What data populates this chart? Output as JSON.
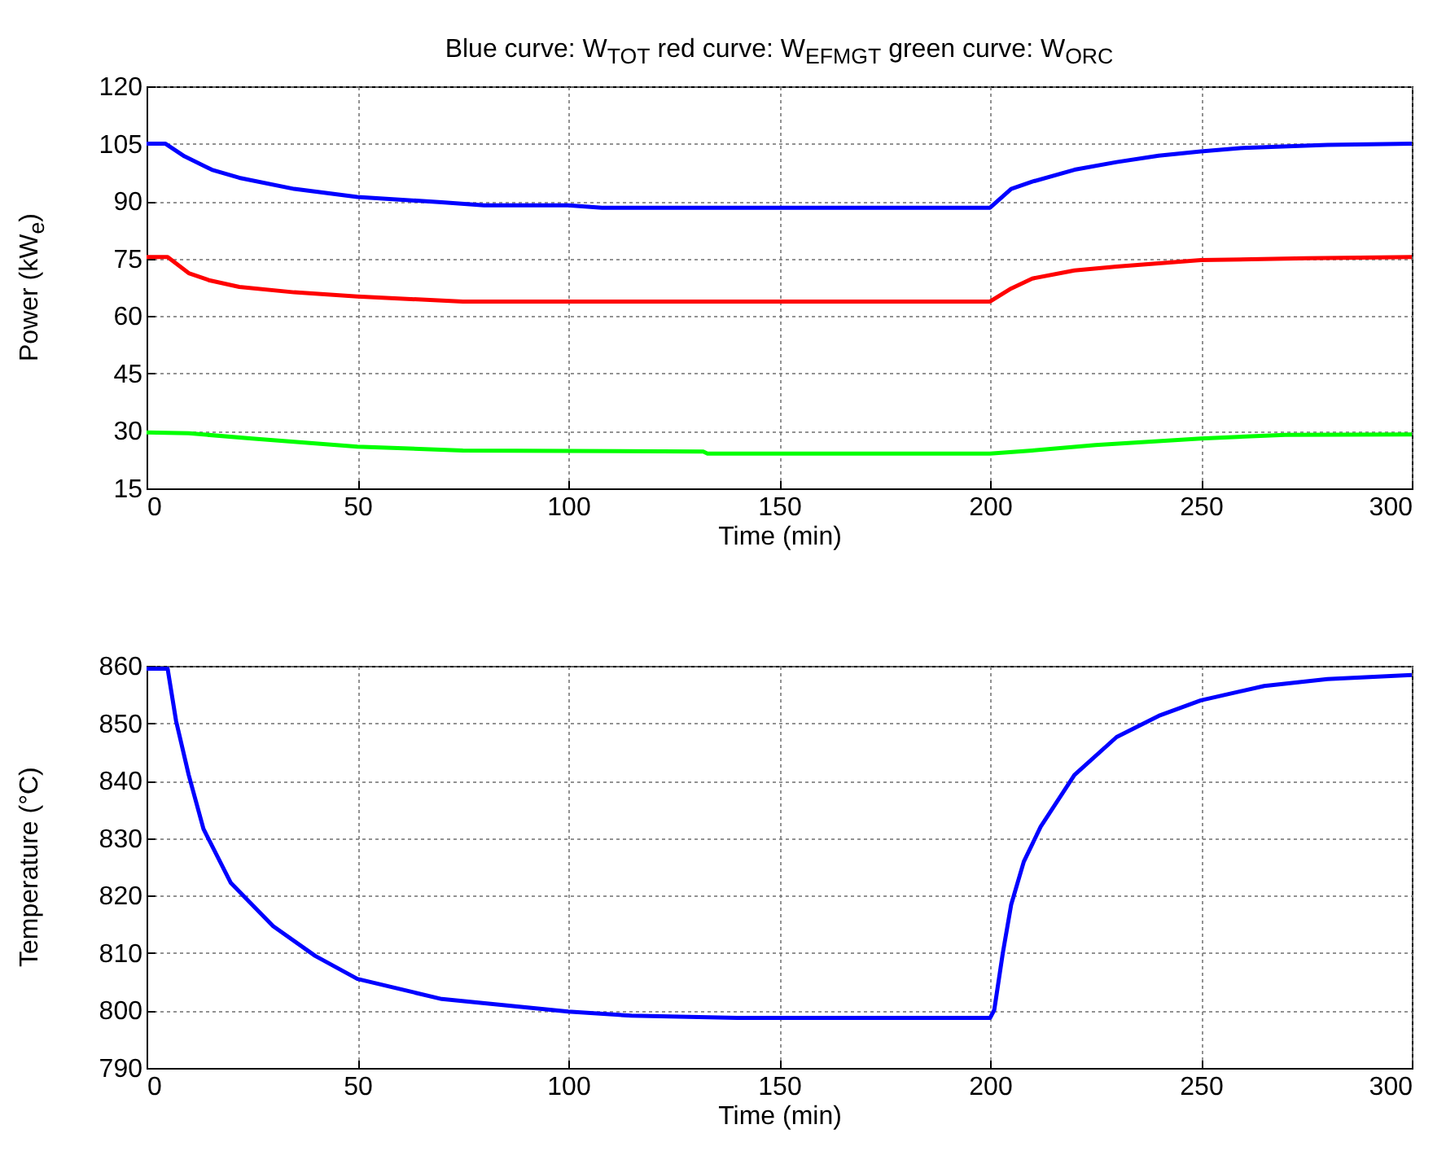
{
  "chart_data": [
    {
      "type": "line",
      "title": "Blue curve: W$_{TOT}$ red curve: W$_{EFMGT}$ green curve: W$_{ORC}$",
      "xlabel": "Time (min)",
      "ylabel": "Power (kW$_{e}$)",
      "xlim": [
        0,
        300
      ],
      "xticks": [
        0,
        50,
        100,
        150,
        200,
        250,
        300
      ],
      "ylim": [
        15,
        120
      ],
      "yticks": [
        15,
        30,
        45,
        60,
        75,
        90,
        105,
        120
      ],
      "grid": true,
      "line_style": "solid",
      "marker": "none",
      "series": [
        {
          "color": "#0000ff",
          "x": [
            0,
            4.5,
            9,
            15.5,
            22,
            35,
            50,
            70,
            80,
            100,
            108,
            150,
            200,
            205,
            210,
            220,
            230,
            240,
            250,
            260,
            280,
            300
          ],
          "values": [
            105,
            105,
            101.7,
            98.2,
            96.1,
            93.2,
            91.1,
            89.7,
            88.9,
            88.9,
            88.3,
            88.3,
            88.3,
            93.2,
            95.1,
            98.2,
            100.2,
            101.9,
            103.0,
            103.9,
            104.7,
            105
          ]
        },
        {
          "color": "#ff0000",
          "x": [
            0,
            5,
            10,
            15,
            22,
            35,
            50,
            75,
            150,
            200,
            205,
            210,
            220,
            230,
            250,
            275,
            300
          ],
          "values": [
            75.4,
            75.4,
            71.2,
            69.3,
            67.6,
            66.2,
            65.1,
            63.8,
            63.8,
            63.8,
            67.2,
            69.8,
            71.9,
            72.9,
            74.6,
            75.1,
            75.4
          ]
        },
        {
          "color": "#00ff00",
          "x": [
            0,
            10,
            25,
            50,
            75,
            132,
            133,
            200,
            210,
            225,
            250,
            270,
            300
          ],
          "values": [
            29.6,
            29.4,
            28.0,
            25.9,
            24.9,
            24.6,
            24.1,
            24.1,
            24.9,
            26.3,
            28.0,
            29.0,
            29.1
          ]
        }
      ]
    },
    {
      "type": "line",
      "xlabel": "Time (min)",
      "ylabel": "Temperature (°C)",
      "xlim": [
        0,
        300
      ],
      "xticks": [
        0,
        50,
        100,
        150,
        200,
        250,
        300
      ],
      "ylim": [
        790,
        860
      ],
      "yticks": [
        790,
        800,
        810,
        820,
        830,
        840,
        850,
        860
      ],
      "grid": true,
      "line_style": "solid",
      "marker": "none",
      "series": [
        {
          "color": "#0000ff",
          "x": [
            0,
            5,
            7,
            10,
            13.5,
            20,
            30,
            40,
            50,
            70,
            100,
            115,
            140,
            200,
            201,
            203,
            205,
            208,
            212,
            220,
            230,
            240,
            250,
            265,
            280,
            300
          ],
          "values": [
            859.5,
            859.5,
            850.4,
            841,
            831.6,
            822.2,
            814.7,
            809.5,
            805.5,
            802,
            799.8,
            799.1,
            798.7,
            798.7,
            800.1,
            809.9,
            818.4,
            825.9,
            832,
            841,
            847.6,
            851.3,
            854,
            856.5,
            857.7,
            858.4
          ]
        }
      ]
    }
  ]
}
